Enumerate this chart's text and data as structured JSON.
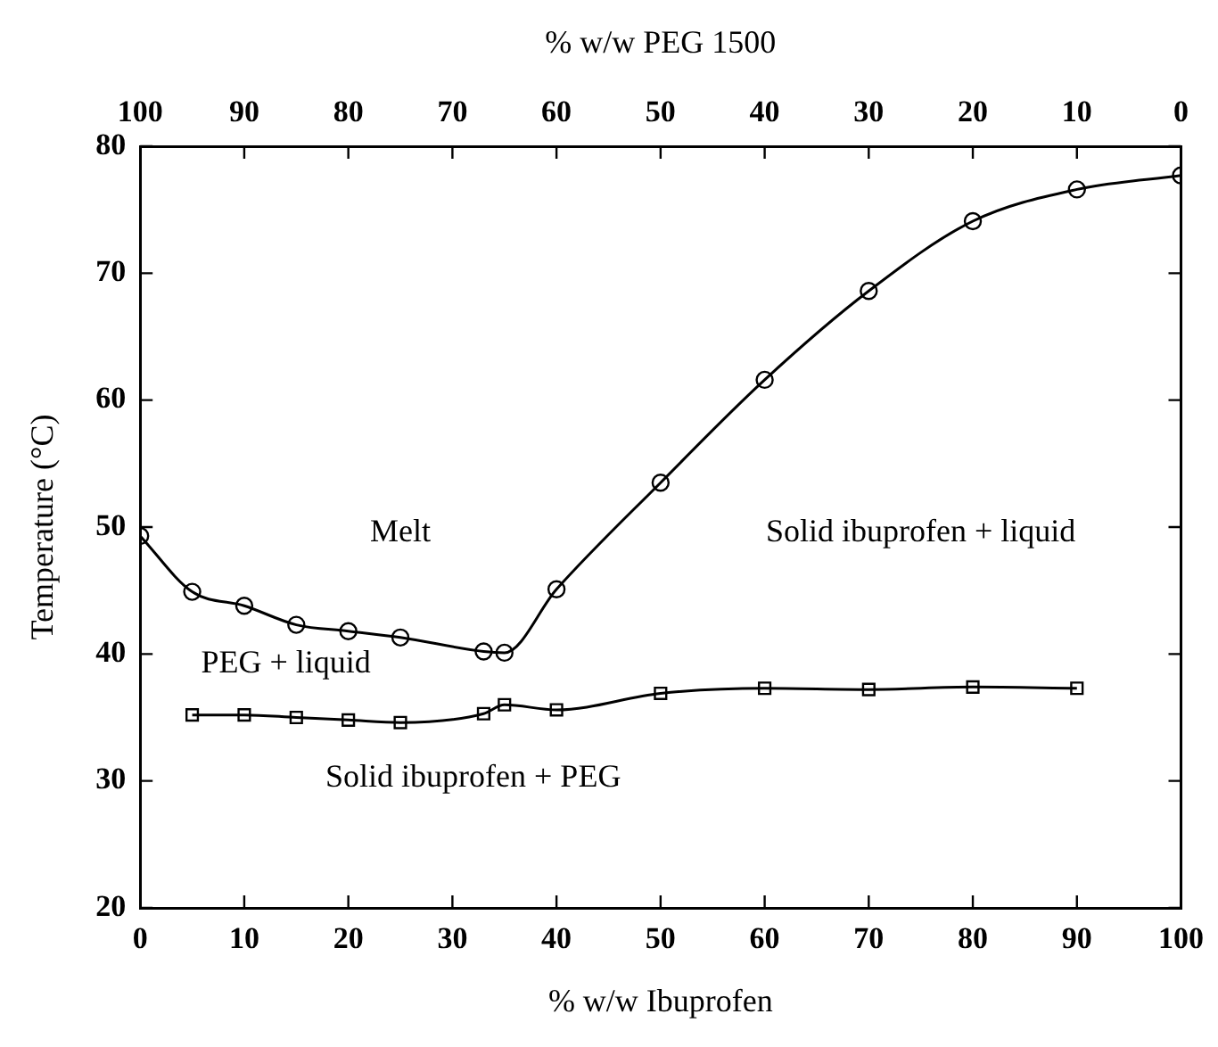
{
  "chart_data": {
    "type": "line",
    "xlabel": "% w/w Ibuprofen",
    "ylabel": "Temperature (°C)",
    "x2label": "% w/w PEG 1500",
    "xlim": [
      0,
      100
    ],
    "xticks": [
      0,
      10,
      20,
      30,
      40,
      50,
      60,
      70,
      80,
      90,
      100
    ],
    "x2lim": [
      100,
      0
    ],
    "x2ticks": [
      100,
      90,
      80,
      70,
      60,
      50,
      40,
      30,
      20,
      10,
      0
    ],
    "ylim": [
      20,
      80
    ],
    "yticks": [
      20,
      30,
      40,
      50,
      60,
      70,
      80
    ],
    "grid": false,
    "legend": false,
    "series": [
      {
        "color": "#000000",
        "marker": "circle",
        "x": [
          0,
          5,
          10,
          15,
          20,
          25,
          33,
          35,
          40,
          50,
          60,
          70,
          80,
          90,
          100
        ],
        "values": [
          49.3,
          44.9,
          43.8,
          42.3,
          41.8,
          41.3,
          40.2,
          40.1,
          45.1,
          53.5,
          61.6,
          68.6,
          74.1,
          76.6,
          77.7
        ]
      },
      {
        "color": "#000000",
        "marker": "square",
        "x": [
          5,
          10,
          15,
          20,
          25,
          33,
          35,
          40,
          50,
          60,
          70,
          80,
          90
        ],
        "values": [
          35.2,
          35.2,
          35.0,
          34.8,
          34.6,
          35.3,
          36.0,
          35.6,
          36.9,
          37.3,
          37.2,
          37.4,
          37.3
        ]
      }
    ],
    "annotations": [
      "Melt",
      "Solid ibuprofen + liquid",
      "PEG + liquid",
      "Solid ibuprofen + PEG"
    ]
  }
}
